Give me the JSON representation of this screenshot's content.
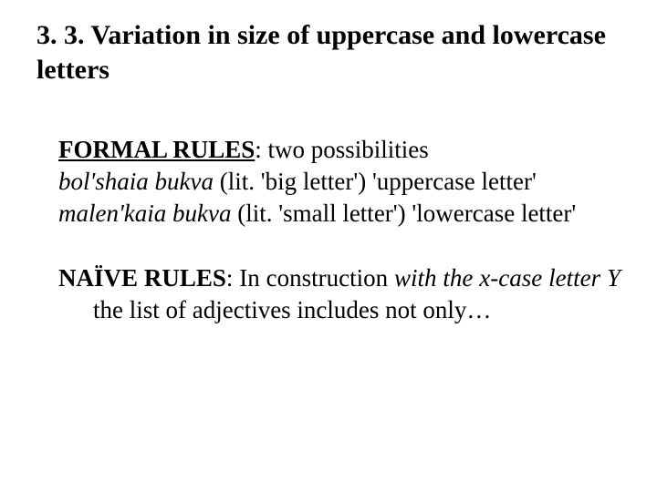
{
  "heading": {
    "text": "3. 3. Variation in size of uppercase and lowercase letters",
    "fontsize": 30,
    "font_weight": "bold",
    "color": "#000000"
  },
  "formal_rules": {
    "label": "FORMAL RULES",
    "label_style": {
      "bold": true,
      "underline": true
    },
    "tail": ": two possibilities",
    "line2_italic": "bol'shaia bukva",
    "line2_rest": " (lit. 'big letter') 'uppercase letter'",
    "line3_italic": "malen'kaia bukva",
    "line3_rest_a": " (lit. 'small letter') 'lowercase letter'",
    "fontsize": 27
  },
  "naive_rules": {
    "label": "NAÏVE RULES",
    "label_style": {
      "bold": true
    },
    "tail_a": ": In construction ",
    "tail_italic": "with the x-case letter Y",
    "tail_b": " the list of adjectives includes not only…",
    "fontsize": 27
  },
  "colors": {
    "background": "#ffffff",
    "text": "#000000"
  },
  "font_family": "Times New Roman"
}
